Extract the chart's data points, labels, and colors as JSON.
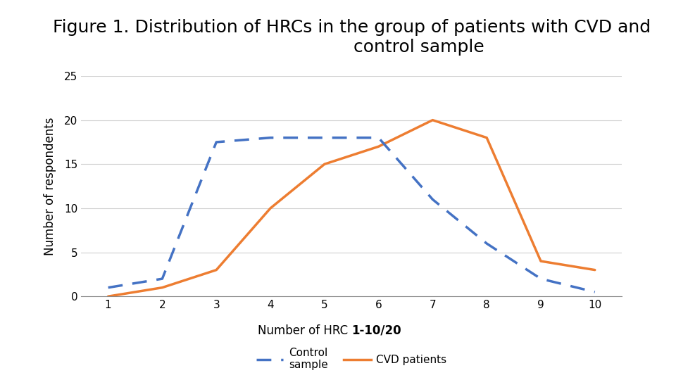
{
  "title": "Figure 1. Distribution of HRCs in the group of patients with CVD and\n                        control sample",
  "x": [
    1,
    2,
    3,
    4,
    5,
    6,
    7,
    8,
    9,
    10
  ],
  "control_y": [
    1,
    2,
    17.5,
    18,
    18,
    18,
    11,
    6,
    2,
    0.5
  ],
  "cvd_y": [
    0,
    1,
    3,
    10,
    15,
    17,
    20,
    18,
    4,
    3
  ],
  "control_color": "#4472C4",
  "cvd_color": "#ED7D31",
  "ylabel": "Number of respondents",
  "xlabel_normal": "Number of HRC ",
  "xlabel_bold": "1-10/20",
  "ylim": [
    0,
    25
  ],
  "yticks": [
    0,
    5,
    10,
    15,
    20,
    25
  ],
  "xticks": [
    1,
    2,
    3,
    4,
    5,
    6,
    7,
    8,
    9,
    10
  ],
  "legend_control": "Control\nsample",
  "legend_cvd": "CVD patients",
  "background_color": "#ffffff",
  "plot_bg_color": "#ffffff",
  "title_fontsize": 18,
  "label_fontsize": 12,
  "tick_fontsize": 11,
  "legend_fontsize": 11
}
